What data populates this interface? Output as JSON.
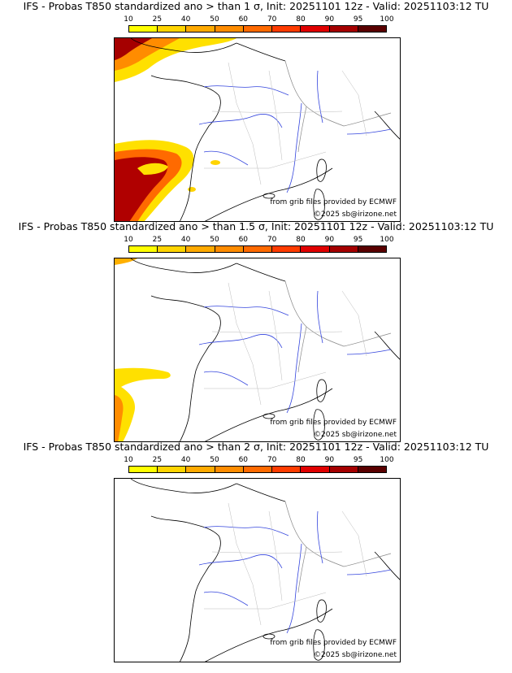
{
  "colorbar": {
    "ticks": [
      "10",
      "25",
      "40",
      "50",
      "60",
      "70",
      "80",
      "90",
      "95",
      "100"
    ],
    "colors": [
      "#ffff00",
      "#ffd400",
      "#ffaa00",
      "#ff8c00",
      "#ff6a00",
      "#ff3c00",
      "#e00000",
      "#a50000",
      "#5a0000"
    ]
  },
  "map": {
    "source": "from grib files provided by ECMWF",
    "copyright": "©2025 sb@irizone.net"
  },
  "panels": [
    {
      "title": "IFS - Probas T850  standardized ano > than 1 σ, Init: 20251101 12z - Valid: 20251103:12 TU"
    },
    {
      "title": "IFS - Probas T850  standardized ano > than 1.5 σ, Init: 20251101 12z - Valid: 20251103:12 TU"
    },
    {
      "title": "IFS - Probas T850  standardized ano > than 2 σ, Init: 20251101 12z - Valid: 20251103:12 TU"
    }
  ]
}
